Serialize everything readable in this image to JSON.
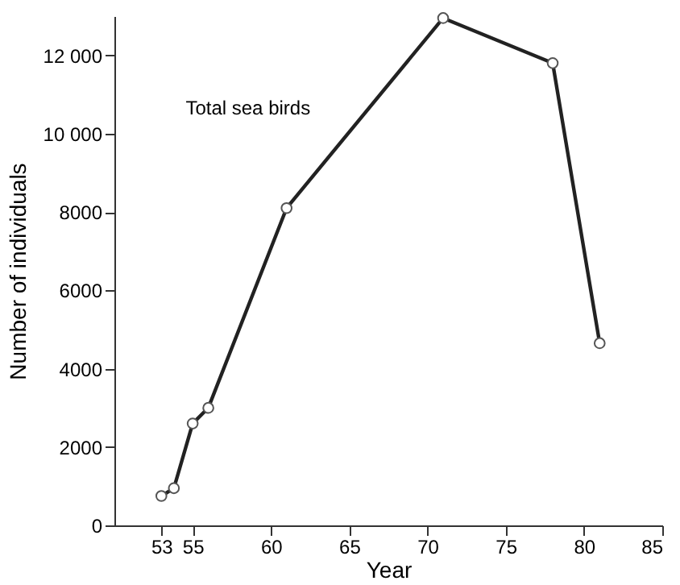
{
  "chart_data": {
    "type": "line",
    "xlabel": "Year",
    "ylabel": "Number of individuals",
    "x": [
      53,
      53.8,
      55,
      56,
      61,
      71,
      78,
      81
    ],
    "series": [
      {
        "color": "#222222",
        "values": [
          750,
          950,
          2600,
          3000,
          8100,
          12950,
          11800,
          4650
        ]
      }
    ],
    "xlim": [
      50,
      85
    ],
    "xticks": [
      53,
      55,
      60,
      65,
      70,
      75,
      80,
      85
    ],
    "ylim": [
      0,
      13000
    ],
    "yticks": [
      0,
      {
        "value": 2000,
        "label": "2000"
      },
      {
        "value": 4000,
        "label": "4000"
      },
      {
        "value": 6000,
        "label": "6000"
      },
      {
        "value": 8000,
        "label": "8000"
      },
      {
        "value": 10000,
        "label": "10 000"
      },
      {
        "value": 12000,
        "label": "12 000"
      }
    ],
    "annotations": [
      "Total sea birds"
    ],
    "grid": false,
    "marker": "circle",
    "line_style": "solid"
  }
}
